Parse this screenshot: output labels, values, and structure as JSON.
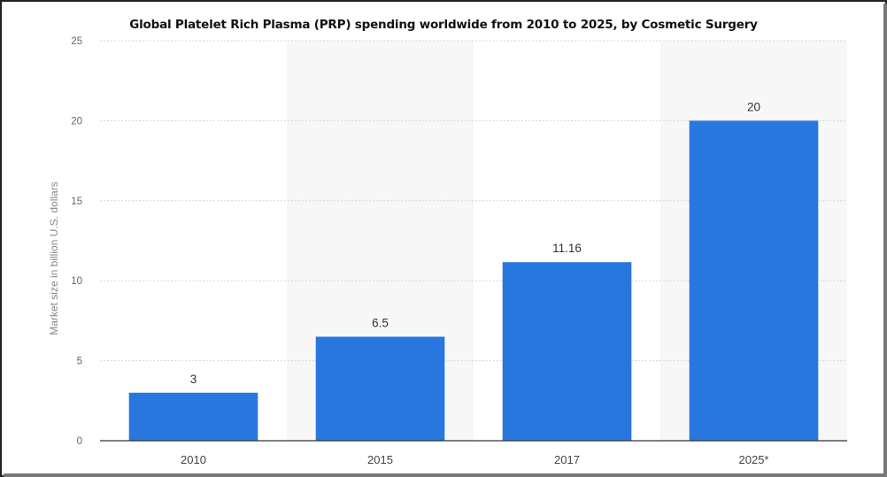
{
  "chart_data": {
    "type": "bar",
    "title": "Global Platelet Rich Plasma (PRP) spending worldwide from 2010 to 2025, by Cosmetic Surgery",
    "xlabel": "",
    "ylabel": "Market size in billion U.S. dollars",
    "categories": [
      "2010",
      "2015",
      "2017",
      "2025*"
    ],
    "values": [
      3,
      6.5,
      11.16,
      20
    ],
    "value_labels": [
      "3",
      "6.5",
      "11.16",
      "20"
    ],
    "ylim": [
      0,
      25
    ],
    "yticks": [
      0,
      5,
      10,
      15,
      20,
      25
    ],
    "grid": true,
    "legend": "none",
    "colors": {
      "bar": "#2877de",
      "grid": "#d6d6d6",
      "band": "#f7f7f7",
      "axis": "#333333"
    }
  }
}
